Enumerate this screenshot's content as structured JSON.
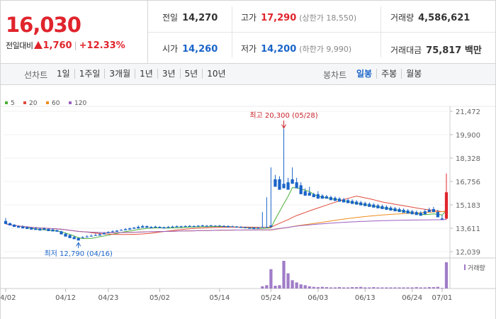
{
  "summary": {
    "current_price": "16,030",
    "change_label": "전일대비",
    "change_amount": "1,760",
    "change_rate": "+12.33%",
    "prev_close_label": "전일",
    "prev_close": "14,270",
    "high_label": "고가",
    "high": "17,290",
    "upper_limit": "(상한가 18,550)",
    "volume_label": "거래량",
    "volume": "4,586,621",
    "open_label": "시가",
    "open": "14,260",
    "low_label": "저가",
    "low": "14,200",
    "lower_limit": "(하한가 9,990)",
    "trade_value_label": "거래대금",
    "trade_value": "75,817 백만",
    "colors": {
      "up": "#e0242c",
      "down": "#1a64c8"
    }
  },
  "toolbar": {
    "line_chart_label": "선차트",
    "periods": [
      "1일",
      "1주일",
      "3개월",
      "1년",
      "3년",
      "5년",
      "10년"
    ],
    "candle_label": "봉차트",
    "candle_periods": [
      "일봉",
      "주봉",
      "월봉"
    ],
    "active_candle": "일봉"
  },
  "chart_data": {
    "type": "candlestick",
    "legend": [
      {
        "name": "5",
        "color": "#4caf3a"
      },
      {
        "name": "20",
        "color": "#e24a3a"
      },
      {
        "name": "60",
        "color": "#f08c1e"
      },
      {
        "name": "120",
        "color": "#9b5fc0"
      }
    ],
    "y_ticks": [
      "21,472",
      "19,900",
      "18,328",
      "16,756",
      "15,183",
      "13,611",
      "12,039"
    ],
    "ylim": [
      12039,
      21472
    ],
    "x_ticks": [
      "04/02",
      "04/12",
      "04/23",
      "05/02",
      "05/14",
      "05/24",
      "06/03",
      "06/13",
      "06/24",
      "07/01"
    ],
    "x_tick_index": [
      0,
      14,
      24,
      36,
      50,
      62,
      73,
      84,
      95,
      102
    ],
    "annotations": {
      "high_text": "최고 20,300 (05/28)",
      "high_value": 20300,
      "high_index": 65,
      "low_text": "최저 12,790 (04/16)",
      "low_value": 12790,
      "low_index": 17
    },
    "volume_legend": "거래량",
    "candles": [
      [
        14100,
        14300,
        14050,
        13900,
        "v",
        0
      ],
      [
        13950,
        14000,
        13850,
        13800,
        "d",
        0
      ],
      [
        13850,
        13900,
        13780,
        13700,
        "d",
        0
      ],
      [
        13750,
        13800,
        13700,
        13650,
        "d",
        0
      ],
      [
        13720,
        13800,
        13650,
        13600,
        "d",
        0
      ],
      [
        13680,
        13750,
        13600,
        13560,
        "d",
        0
      ],
      [
        13640,
        13700,
        13580,
        13520,
        "d",
        0
      ],
      [
        13600,
        13700,
        13550,
        13500,
        "d",
        0
      ],
      [
        13580,
        13650,
        13520,
        13460,
        "d",
        0
      ],
      [
        13600,
        13650,
        13550,
        13500,
        "d",
        0
      ],
      [
        13560,
        13600,
        13480,
        13420,
        "d",
        0
      ],
      [
        13520,
        13600,
        13450,
        13400,
        "d",
        0
      ],
      [
        13480,
        13520,
        13420,
        13380,
        "d",
        0
      ],
      [
        13400,
        13450,
        13300,
        13200,
        "d",
        0
      ],
      [
        13250,
        13300,
        13150,
        13050,
        "d",
        0
      ],
      [
        13150,
        13200,
        13050,
        12950,
        "d",
        0
      ],
      [
        13020,
        13100,
        12950,
        12880,
        "d",
        0
      ],
      [
        12950,
        13000,
        12900,
        12790,
        "d",
        0
      ],
      [
        13000,
        13080,
        12960,
        12950,
        "d",
        0
      ],
      [
        13050,
        13150,
        13000,
        13000,
        "u",
        0
      ],
      [
        13100,
        13200,
        13080,
        13050,
        "u",
        0
      ],
      [
        13150,
        13250,
        13120,
        13100,
        "u",
        0
      ],
      [
        13200,
        13300,
        13150,
        13120,
        "u",
        0
      ],
      [
        13280,
        13350,
        13250,
        13200,
        "u",
        0
      ],
      [
        13350,
        13420,
        13300,
        13280,
        "u",
        0
      ],
      [
        13400,
        13480,
        13380,
        13350,
        "d",
        0
      ],
      [
        13450,
        13500,
        13400,
        13380,
        "u",
        0
      ],
      [
        13500,
        13550,
        13480,
        13450,
        "u",
        0
      ],
      [
        13550,
        13620,
        13500,
        13480,
        "u",
        0
      ],
      [
        13600,
        13650,
        13550,
        13520,
        "d",
        0
      ],
      [
        13650,
        13700,
        13600,
        13580,
        "u",
        0
      ],
      [
        13700,
        13800,
        13650,
        13600,
        "u",
        0
      ],
      [
        13750,
        13850,
        13700,
        13650,
        "u",
        0
      ],
      [
        13750,
        13800,
        13680,
        13650,
        "u",
        0
      ],
      [
        13700,
        13750,
        13650,
        13620,
        "d",
        0
      ],
      [
        13720,
        13780,
        13680,
        13650,
        "u",
        0
      ],
      [
        13700,
        13750,
        13650,
        13620,
        "d",
        0
      ],
      [
        13680,
        13720,
        13640,
        13600,
        "u",
        0
      ],
      [
        13700,
        13760,
        13650,
        13640,
        "u",
        0
      ],
      [
        13720,
        13780,
        13680,
        13660,
        "d",
        0
      ],
      [
        13750,
        13800,
        13700,
        13680,
        "u",
        0
      ],
      [
        13740,
        13790,
        13700,
        13680,
        "d",
        0
      ],
      [
        13760,
        13800,
        13720,
        13700,
        "u",
        0
      ],
      [
        13770,
        13820,
        13730,
        13710,
        "d",
        0
      ],
      [
        13760,
        13800,
        13720,
        13700,
        "d",
        0
      ],
      [
        13780,
        13820,
        13740,
        13720,
        "u",
        0
      ],
      [
        13800,
        13850,
        13760,
        13740,
        "d",
        0
      ],
      [
        13780,
        13820,
        13740,
        13720,
        "u",
        0
      ],
      [
        13800,
        13840,
        13760,
        13750,
        "d",
        0
      ],
      [
        13780,
        13820,
        13740,
        13730,
        "u",
        0
      ],
      [
        13790,
        13830,
        13750,
        13740,
        "d",
        0
      ],
      [
        13770,
        13810,
        13720,
        13700,
        "d",
        0
      ],
      [
        13760,
        13800,
        13700,
        13680,
        "d",
        0
      ],
      [
        13740,
        13790,
        13700,
        13690,
        "d",
        0
      ],
      [
        13720,
        13770,
        13680,
        13660,
        "d",
        0
      ],
      [
        13700,
        13760,
        13660,
        13640,
        "d",
        0
      ],
      [
        13680,
        13720,
        13640,
        13620,
        "d",
        0
      ],
      [
        13650,
        13700,
        13600,
        13580,
        "d",
        0
      ],
      [
        13650,
        13700,
        13600,
        13560,
        "d",
        0
      ],
      [
        13640,
        13700,
        13600,
        13580,
        "d",
        0
      ],
      [
        13700,
        14700,
        13700,
        13680,
        "u",
        0.08
      ],
      [
        13700,
        15700,
        13700,
        13690,
        "u",
        0.12
      ],
      [
        13800,
        17700,
        13750,
        13700,
        "u",
        0.7
      ],
      [
        16900,
        17200,
        16600,
        16400,
        "d",
        0.1
      ],
      [
        16900,
        17100,
        16800,
        16200,
        "d",
        0.12
      ],
      [
        16600,
        20300,
        16600,
        16300,
        "d",
        1.0
      ],
      [
        16700,
        17000,
        16500,
        16200,
        "d",
        0.55
      ],
      [
        16900,
        17700,
        16800,
        16600,
        "d",
        0.3
      ],
      [
        16700,
        17000,
        16400,
        16300,
        "d",
        0.22
      ],
      [
        16500,
        16700,
        16000,
        15900,
        "d",
        0.15
      ],
      [
        16100,
        16300,
        15900,
        15800,
        "d",
        0.12
      ],
      [
        16000,
        16400,
        15950,
        15800,
        "u",
        0.08
      ],
      [
        15900,
        16000,
        15800,
        15700,
        "d",
        0.06
      ],
      [
        15900,
        16100,
        15700,
        15600,
        "d",
        0.05
      ],
      [
        15800,
        15900,
        15700,
        15600,
        "d",
        0.06
      ],
      [
        15750,
        15850,
        15650,
        15600,
        "d",
        0.05
      ],
      [
        15700,
        15800,
        15600,
        15500,
        "d",
        0.04
      ],
      [
        15650,
        15750,
        15550,
        15450,
        "d",
        0.04
      ],
      [
        15600,
        15700,
        15500,
        15400,
        "d",
        0.05
      ],
      [
        15550,
        15650,
        15450,
        15350,
        "d",
        0.04
      ],
      [
        15500,
        15600,
        15400,
        15300,
        "d",
        0.04
      ],
      [
        15450,
        15550,
        15350,
        15250,
        "d",
        0.05
      ],
      [
        15400,
        15500,
        15300,
        15200,
        "d",
        0.05
      ],
      [
        15350,
        15450,
        15250,
        15150,
        "d",
        0.06
      ],
      [
        15300,
        15400,
        15200,
        15100,
        "d",
        0.04
      ],
      [
        15250,
        15350,
        15150,
        15050,
        "d",
        0.04
      ],
      [
        15200,
        15300,
        15100,
        15000,
        "d",
        0.05
      ],
      [
        15150,
        15250,
        15050,
        14950,
        "d",
        0.04
      ],
      [
        15100,
        15200,
        15000,
        14900,
        "d",
        0.04
      ],
      [
        15050,
        15150,
        14950,
        14850,
        "d",
        0.04
      ],
      [
        15000,
        15100,
        14900,
        14800,
        "d",
        0.04
      ],
      [
        14950,
        15050,
        14850,
        14750,
        "d",
        0.04
      ],
      [
        14900,
        15000,
        14800,
        14700,
        "d",
        0.04
      ],
      [
        14850,
        14950,
        14750,
        14650,
        "d",
        0.04
      ],
      [
        14800,
        14900,
        14700,
        14600,
        "d",
        0.04
      ],
      [
        14750,
        14850,
        14650,
        14550,
        "d",
        0.04
      ],
      [
        14700,
        14800,
        14600,
        14500,
        "d",
        0.05
      ],
      [
        14650,
        14750,
        14550,
        14450,
        "d",
        0.04
      ],
      [
        14750,
        14900,
        14600,
        14550,
        "u",
        0.04
      ],
      [
        14850,
        15000,
        14750,
        14700,
        "u",
        0.05
      ],
      [
        14900,
        15050,
        14800,
        14700,
        "d",
        0.05
      ],
      [
        14700,
        14850,
        14400,
        14350,
        "d",
        0.06
      ],
      [
        14270,
        14500,
        14200,
        14200,
        "u",
        0.02
      ],
      [
        14260,
        17290,
        14200,
        16030,
        "u",
        0.95
      ]
    ]
  }
}
